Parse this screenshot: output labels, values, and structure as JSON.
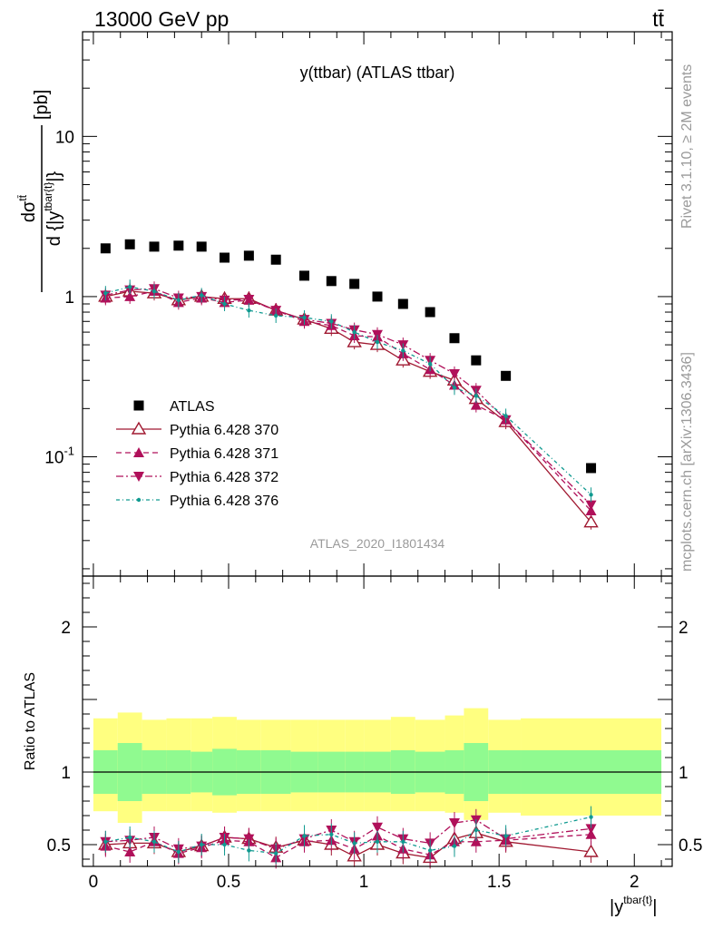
{
  "header": {
    "left": "13000 GeV pp",
    "right": "tt̄"
  },
  "side_text": {
    "rivet": "Rivet 3.1.10, ≥ 2M events",
    "mcplots": "mcplots.cern.ch [arXiv:1306.3436]"
  },
  "colors": {
    "atlas": "#000000",
    "p370": "#a01830",
    "p371": "#b0105a",
    "p372": "#b0105a",
    "p376": "#109a90",
    "band_outer": "#ffff80",
    "band_inner": "#90fa90",
    "watermark": "#9a9a9a"
  },
  "chart_data": [
    {
      "type": "scatter",
      "title": "y(ttbar) (ATLAS ttbar)",
      "xlabel": "|y^{tbar{t}}|",
      "ylabel": "dσ^{tt̄} / d {|y^{tbar{t}}|} [pb]",
      "y_scale": "log",
      "ylim": [
        0.018,
        45
      ],
      "xlim": [
        -0.04,
        2.14
      ],
      "y_ticks": [
        "10^{-1}",
        "1",
        "10"
      ],
      "annotation": "ATLAS_2020_I1801434",
      "legend_placement": "bottom-left",
      "x": [
        0.045,
        0.135,
        0.225,
        0.315,
        0.4,
        0.485,
        0.575,
        0.675,
        0.78,
        0.88,
        0.965,
        1.05,
        1.145,
        1.245,
        1.335,
        1.415,
        1.525,
        1.84
      ],
      "series": [
        {
          "name": "ATLAS",
          "marker": "square",
          "values": [
            2.0,
            2.12,
            2.05,
            2.08,
            2.05,
            1.75,
            1.8,
            1.7,
            1.35,
            1.25,
            1.2,
            1.0,
            0.9,
            0.8,
            0.55,
            0.4,
            0.32,
            0.085
          ]
        },
        {
          "name": "Pythia 6.428 370",
          "marker": "open-triangle",
          "line": "solid",
          "values": [
            1.0,
            1.08,
            1.05,
            0.95,
            1.0,
            0.97,
            0.97,
            0.82,
            0.72,
            0.63,
            0.52,
            0.5,
            0.4,
            0.34,
            0.3,
            0.23,
            0.165,
            0.039
          ]
        },
        {
          "name": "Pythia 6.428 371",
          "marker": "triangle-up",
          "line": "dashed",
          "values": [
            0.98,
            1.0,
            1.08,
            0.92,
            0.98,
            0.92,
            0.95,
            0.82,
            0.7,
            0.66,
            0.57,
            0.56,
            0.44,
            0.35,
            0.28,
            0.21,
            0.17,
            0.046
          ]
        },
        {
          "name": "Pythia 6.428 372",
          "marker": "triangle-down",
          "line": "dashdot",
          "values": [
            1.02,
            1.1,
            1.12,
            0.98,
            1.0,
            0.95,
            0.96,
            0.82,
            0.72,
            0.68,
            0.62,
            0.58,
            0.5,
            0.4,
            0.33,
            0.26,
            0.17,
            0.05
          ]
        },
        {
          "name": "Pythia 6.428 376",
          "marker": "dot",
          "line": "dashdotted",
          "values": [
            1.05,
            1.15,
            1.08,
            0.95,
            1.02,
            0.9,
            0.82,
            0.76,
            0.74,
            0.7,
            0.6,
            0.52,
            0.46,
            0.38,
            0.27,
            0.24,
            0.18,
            0.058
          ]
        }
      ]
    },
    {
      "type": "scatter",
      "ylabel": "Ratio to ATLAS",
      "xlabel": "|y^{tbar{t}}|",
      "ylim": [
        0.35,
        2.35
      ],
      "xlim": [
        -0.04,
        2.14
      ],
      "x_ticks": [
        "0",
        "0.5",
        "1",
        "1.5",
        "2"
      ],
      "y_ticks": [
        "0.5",
        "1",
        "2"
      ],
      "bin_edges": [
        0.0,
        0.09,
        0.18,
        0.27,
        0.36,
        0.44,
        0.53,
        0.62,
        0.73,
        0.83,
        0.93,
        1.0,
        1.1,
        1.19,
        1.3,
        1.37,
        1.46,
        1.58,
        2.1
      ],
      "band_outer": {
        "low": [
          0.73,
          0.65,
          0.73,
          0.73,
          0.73,
          0.72,
          0.73,
          0.73,
          0.73,
          0.73,
          0.73,
          0.73,
          0.73,
          0.73,
          0.72,
          0.67,
          0.72,
          0.7
        ],
        "high": [
          1.37,
          1.41,
          1.36,
          1.37,
          1.37,
          1.38,
          1.36,
          1.36,
          1.36,
          1.36,
          1.36,
          1.36,
          1.38,
          1.36,
          1.39,
          1.44,
          1.36,
          1.37
        ]
      },
      "band_inner": {
        "low": [
          0.85,
          0.8,
          0.85,
          0.85,
          0.86,
          0.84,
          0.85,
          0.85,
          0.86,
          0.86,
          0.86,
          0.86,
          0.85,
          0.86,
          0.85,
          0.8,
          0.85,
          0.85
        ]
      },
      "x": [
        0.045,
        0.135,
        0.225,
        0.315,
        0.4,
        0.485,
        0.575,
        0.675,
        0.78,
        0.88,
        0.965,
        1.05,
        1.145,
        1.245,
        1.335,
        1.415,
        1.525,
        1.84
      ],
      "series": [
        {
          "name": "Pythia 6.428 370",
          "values": [
            0.5,
            0.51,
            0.51,
            0.45,
            0.49,
            0.55,
            0.54,
            0.48,
            0.53,
            0.5,
            0.42,
            0.5,
            0.44,
            0.41,
            0.54,
            0.58,
            0.52,
            0.45
          ]
        },
        {
          "name": "Pythia 6.428 371",
          "values": [
            0.49,
            0.45,
            0.52,
            0.44,
            0.48,
            0.53,
            0.52,
            0.41,
            0.52,
            0.53,
            0.47,
            0.56,
            0.47,
            0.43,
            0.52,
            0.52,
            0.53,
            0.57
          ]
        },
        {
          "name": "Pythia 6.428 372",
          "values": [
            0.52,
            0.53,
            0.55,
            0.47,
            0.49,
            0.55,
            0.54,
            0.47,
            0.54,
            0.6,
            0.52,
            0.62,
            0.54,
            0.51,
            0.65,
            0.67,
            0.54,
            0.61
          ]
        },
        {
          "name": "Pythia 6.428 376",
          "values": [
            0.52,
            0.55,
            0.52,
            0.45,
            0.5,
            0.5,
            0.46,
            0.44,
            0.56,
            0.57,
            0.51,
            0.52,
            0.52,
            0.46,
            0.49,
            0.6,
            0.56,
            0.69
          ]
        }
      ]
    }
  ]
}
